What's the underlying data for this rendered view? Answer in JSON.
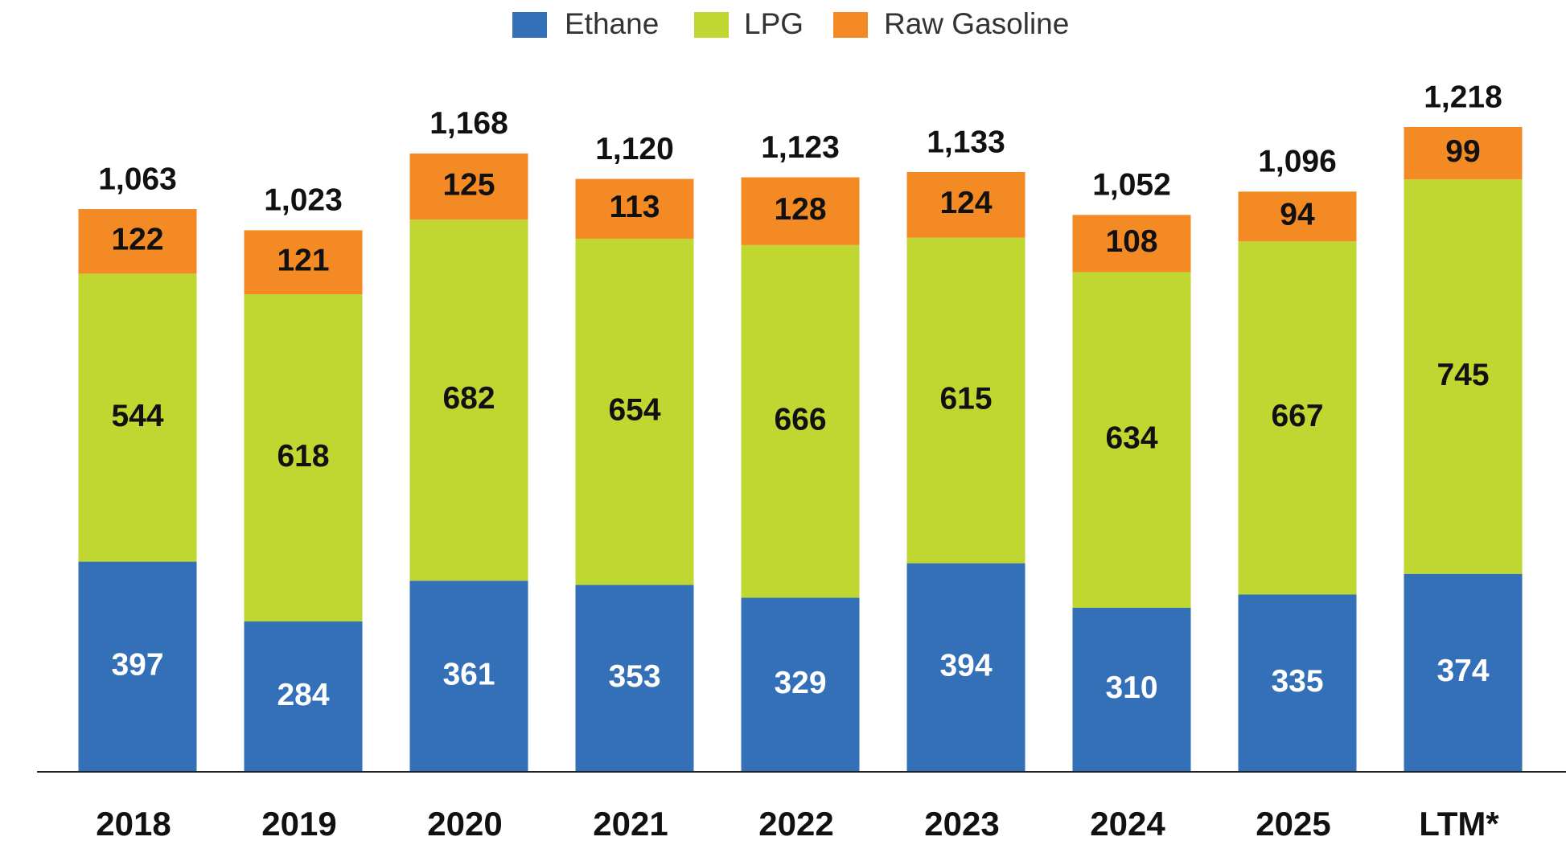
{
  "chart_data": {
    "type": "stacked_bar",
    "categories": [
      "2018",
      "2019",
      "2020",
      "2021",
      "2022",
      "2023",
      "2024",
      "2025",
      "LTM*"
    ],
    "series": [
      {
        "name": "Ethane",
        "color": "#3470b8",
        "values": [
          397,
          284,
          361,
          353,
          329,
          394,
          310,
          335,
          374
        ]
      },
      {
        "name": "LPG",
        "color": "#c0d731",
        "values": [
          544,
          618,
          682,
          654,
          666,
          615,
          634,
          667,
          745
        ]
      },
      {
        "name": "Raw Gasoline",
        "color": "#f38a23",
        "values": [
          122,
          121,
          125,
          113,
          128,
          124,
          108,
          94,
          99
        ]
      }
    ],
    "totals": [
      1063,
      1023,
      1168,
      1120,
      1123,
      1133,
      1052,
      1096,
      1218
    ],
    "total_labels": [
      "1,063",
      "1,023",
      "1,168",
      "1,120",
      "1,123",
      "1,133",
      "1,052",
      "1,096",
      "1,218"
    ],
    "legend": "top"
  }
}
